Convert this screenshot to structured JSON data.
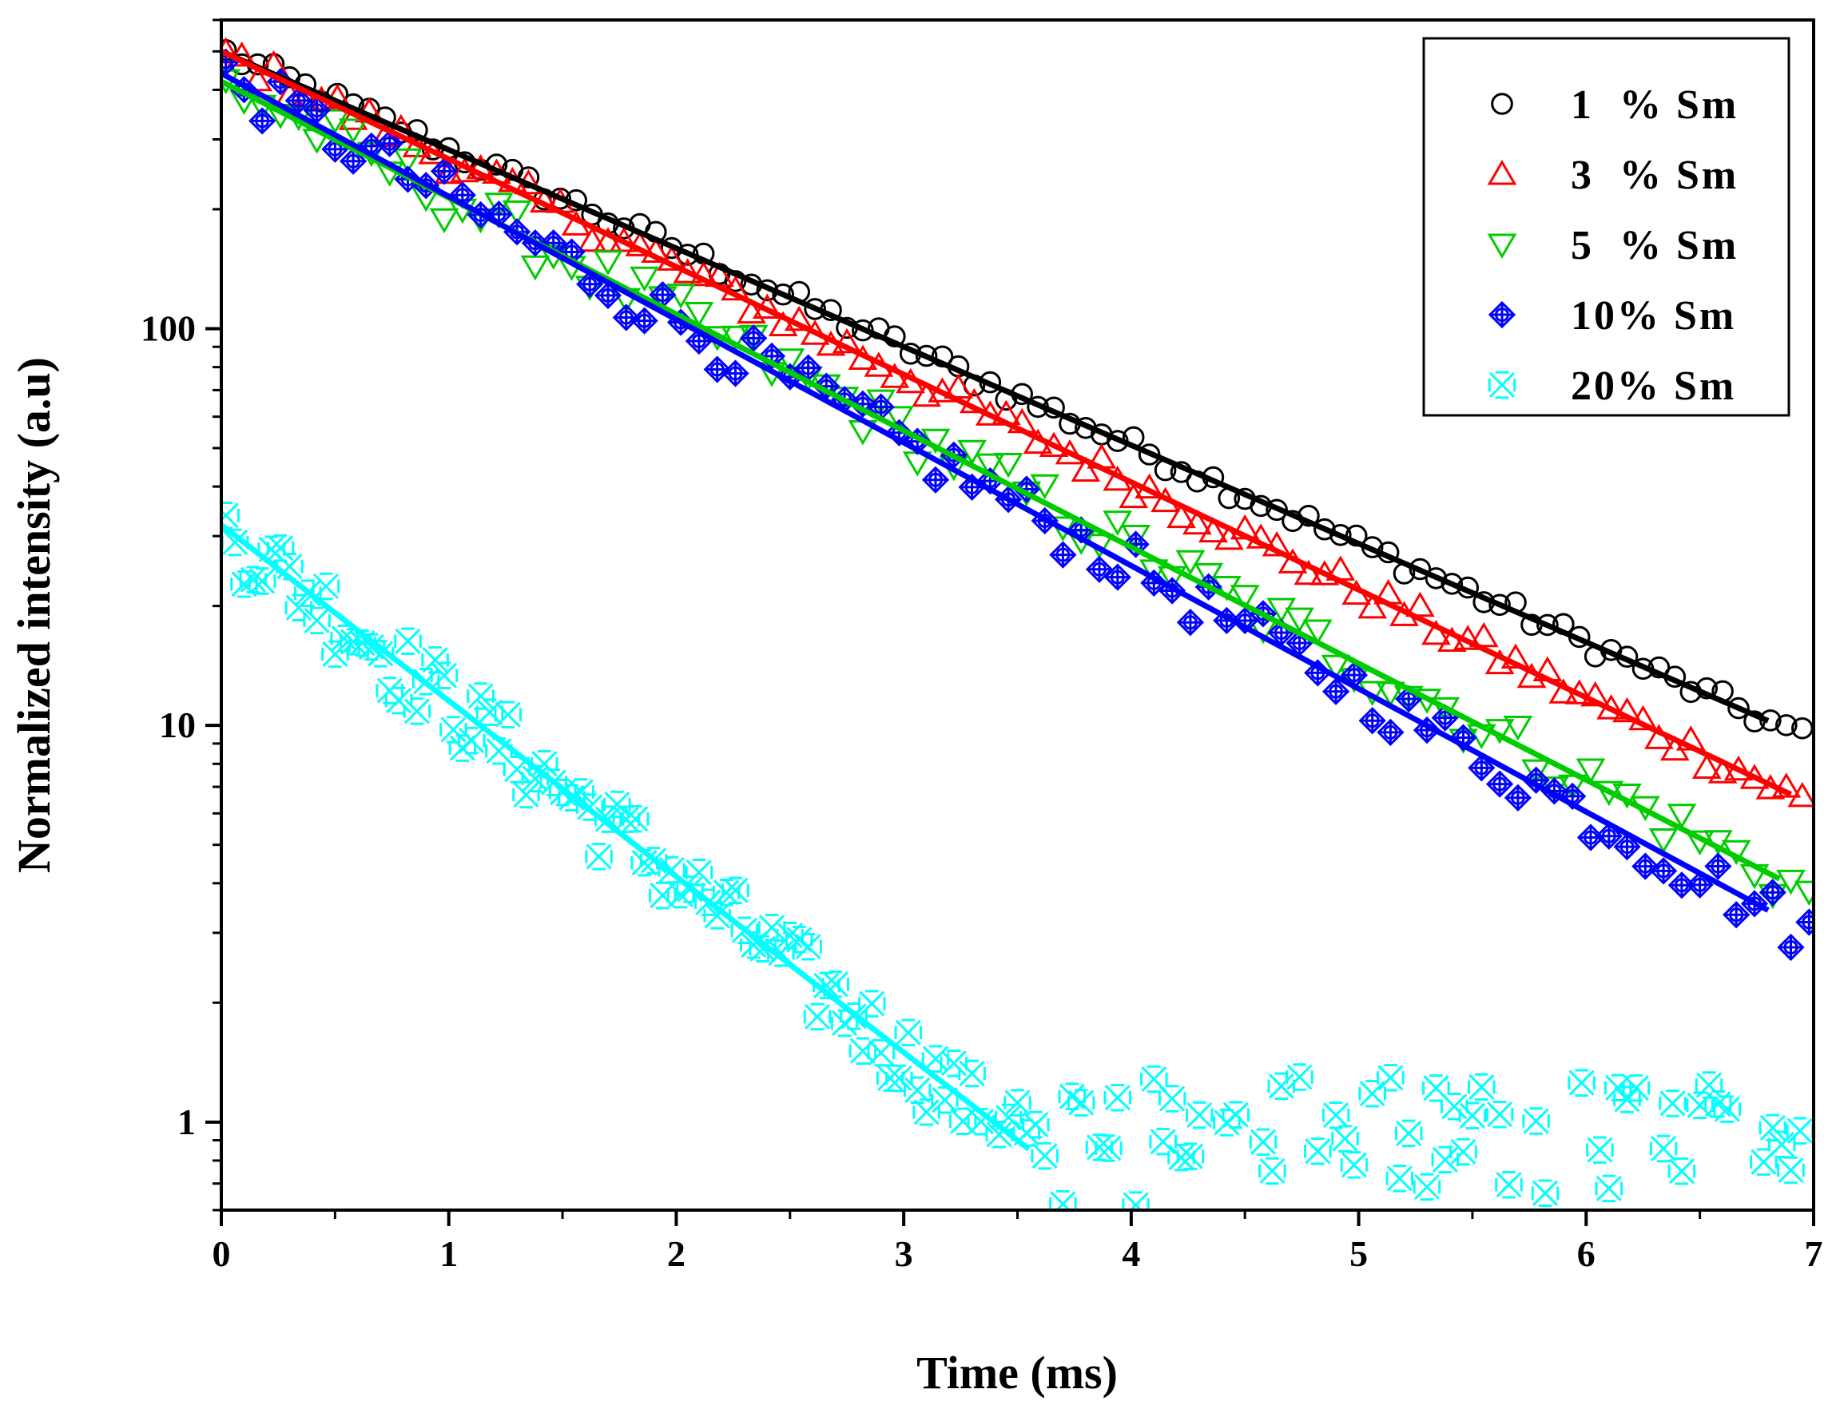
{
  "chart_data": {
    "type": "scatter",
    "title": "",
    "xlabel": "Time (ms)",
    "ylabel": "Normalized intensity (a.u)",
    "x_scale": "linear",
    "y_scale": "log",
    "xlim": [
      0,
      7
    ],
    "ylim": [
      0.6,
      600
    ],
    "x_ticks": [
      0,
      1,
      2,
      3,
      4,
      5,
      6,
      7
    ],
    "x_tick_labels": [
      "0",
      "1",
      "2",
      "3",
      "4",
      "5",
      "6",
      "7"
    ],
    "y_ticks": [
      1,
      10,
      100
    ],
    "y_tick_labels": [
      "1",
      "10",
      "100"
    ],
    "grid": false,
    "legend_position": "top-right",
    "series": [
      {
        "name": "1 % Sm",
        "legend_label": "1  % Sm",
        "color": "#000000",
        "marker": "circle",
        "start": 500,
        "tau": 1.75,
        "fit_end": 6.8,
        "noise": 0.06,
        "spacing": 0.07
      },
      {
        "name": "3 % Sm",
        "legend_label": "3  % Sm",
        "color": "#ff0000",
        "marker": "triangle-up",
        "start": 500,
        "tau": 1.6,
        "fit_end": 6.9,
        "noise": 0.08,
        "spacing": 0.07
      },
      {
        "name": "5 % Sm",
        "legend_label": "5  % Sm",
        "color": "#00cc00",
        "marker": "triangle-down",
        "start": 420,
        "tau": 1.48,
        "fit_end": 6.85,
        "noise": 0.14,
        "spacing": 0.08
      },
      {
        "name": "10% Sm",
        "legend_label": "10% Sm",
        "color": "#0000ff",
        "marker": "diamond-cross",
        "start": 440,
        "tau": 1.4,
        "fit_end": 6.8,
        "noise": 0.15,
        "spacing": 0.08
      },
      {
        "name": "20% Sm",
        "legend_label": "20% Sm",
        "color": "#00ffff",
        "marker": "star-x",
        "start": 32,
        "tau": 0.98,
        "fit_end": 3.55,
        "noise": 0.22,
        "spacing": 0.04
      }
    ]
  }
}
